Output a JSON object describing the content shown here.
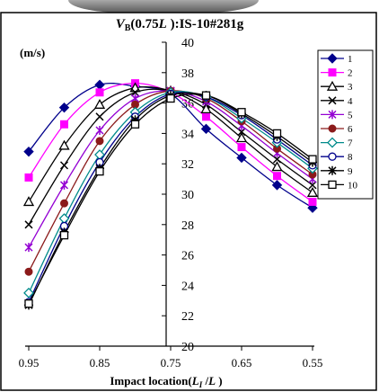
{
  "chart_data": {
    "type": "line",
    "title": "V B(0.75L ):IS-10#281g",
    "title_parts": {
      "v": "V",
      "sub": "B",
      "open": "(0.75",
      "l": "L",
      "close": " ):IS-10#281g"
    },
    "unit_label": "(m/s)",
    "xlabel": "Impact location(L I /L )",
    "xlabel_parts": {
      "main": "Impact location(",
      "l1": "L",
      "sub": "I",
      "slash": " /",
      "l2": "L",
      "close": " )"
    },
    "x_ticks": [
      "0.95",
      "0.85",
      "0.75",
      "0.65",
      "0.55"
    ],
    "y_ticks": [
      "20",
      "22",
      "24",
      "26",
      "28",
      "30",
      "32",
      "34",
      "36",
      "38",
      "40"
    ],
    "xlim": [
      0.95,
      0.55
    ],
    "ylim": [
      20,
      40
    ],
    "x": [
      0.95,
      0.9,
      0.85,
      0.8,
      0.75,
      0.7,
      0.65,
      0.6,
      0.55
    ],
    "series": [
      {
        "name": "1",
        "color": "#00008B",
        "marker": "diamond",
        "values": [
          32.8,
          35.7,
          37.2,
          37.1,
          36.6,
          34.3,
          32.4,
          30.6,
          29.1
        ]
      },
      {
        "name": "2",
        "color": "#FF00FF",
        "marker": "square",
        "values": [
          31.1,
          34.6,
          36.7,
          37.3,
          36.7,
          35.1,
          33.1,
          31.2,
          29.5
        ]
      },
      {
        "name": "3",
        "color": "#000000",
        "marker": "triangle",
        "values": [
          29.5,
          33.2,
          35.9,
          37.0,
          36.8,
          35.6,
          33.7,
          31.8,
          30.1
        ]
      },
      {
        "name": "4",
        "color": "#000000",
        "marker": "x",
        "values": [
          28.0,
          31.9,
          35.1,
          36.7,
          36.8,
          35.9,
          34.1,
          32.3,
          30.6
        ]
      },
      {
        "name": "5",
        "color": "#9400D3",
        "marker": "asterisk",
        "values": [
          26.5,
          30.6,
          34.2,
          36.3,
          36.8,
          36.1,
          34.5,
          32.7,
          31.0
        ]
      },
      {
        "name": "6",
        "color": "#8B1A1A",
        "marker": "circle-filled",
        "values": [
          24.9,
          29.4,
          33.5,
          35.9,
          36.8,
          36.3,
          34.8,
          33.0,
          31.3
        ]
      },
      {
        "name": "7",
        "color": "#008B8B",
        "marker": "diamond-open",
        "values": [
          23.5,
          28.4,
          32.6,
          35.4,
          36.7,
          36.4,
          35.0,
          33.4,
          31.7
        ]
      },
      {
        "name": "8",
        "color": "#00008B",
        "marker": "circle-open",
        "values": [
          22.9,
          27.9,
          32.1,
          35.1,
          36.6,
          36.4,
          35.2,
          33.6,
          31.9
        ]
      },
      {
        "name": "9",
        "color": "#000000",
        "marker": "star",
        "values": [
          22.7,
          27.5,
          31.7,
          34.9,
          36.5,
          36.5,
          35.3,
          33.8,
          32.1
        ]
      },
      {
        "name": "10",
        "color": "#000000",
        "marker": "square-open",
        "values": [
          22.8,
          27.3,
          31.5,
          34.6,
          36.3,
          36.5,
          35.4,
          34.0,
          32.3
        ]
      }
    ],
    "grid": false,
    "legend_position": "right"
  }
}
